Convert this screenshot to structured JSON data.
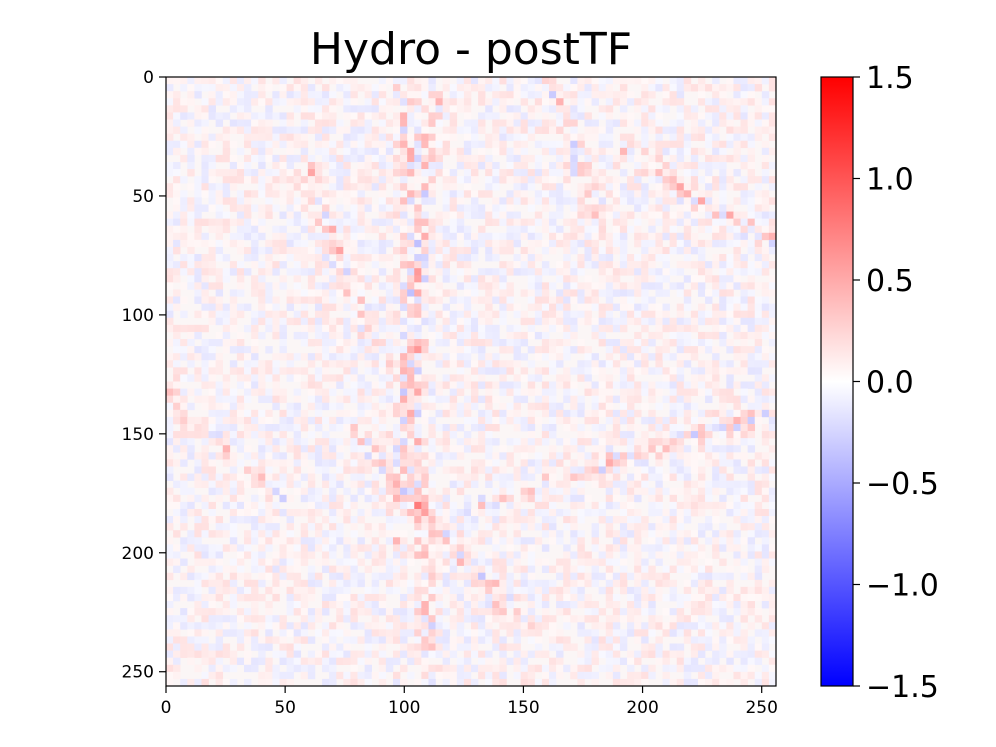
{
  "chart_data": {
    "type": "heatmap",
    "title": "Hydro - postTF",
    "xlabel": "",
    "ylabel": "",
    "image_size": [
      256,
      256
    ],
    "xlim": [
      0,
      256
    ],
    "ylim": [
      256,
      0
    ],
    "x_ticks": [
      0,
      50,
      100,
      150,
      200,
      250
    ],
    "y_ticks": [
      0,
      50,
      100,
      150,
      200,
      250
    ],
    "colormap": "bwr",
    "color_min": -1.5,
    "color_max": 1.5,
    "colorbar_ticks": [
      "1.5",
      "1.0",
      "0.5",
      "0.0",
      "−0.5",
      "−1.0",
      "−1.5"
    ],
    "colors": {
      "low": "#0000ff",
      "mid": "#ffffff",
      "high": "#ff0000"
    }
  }
}
